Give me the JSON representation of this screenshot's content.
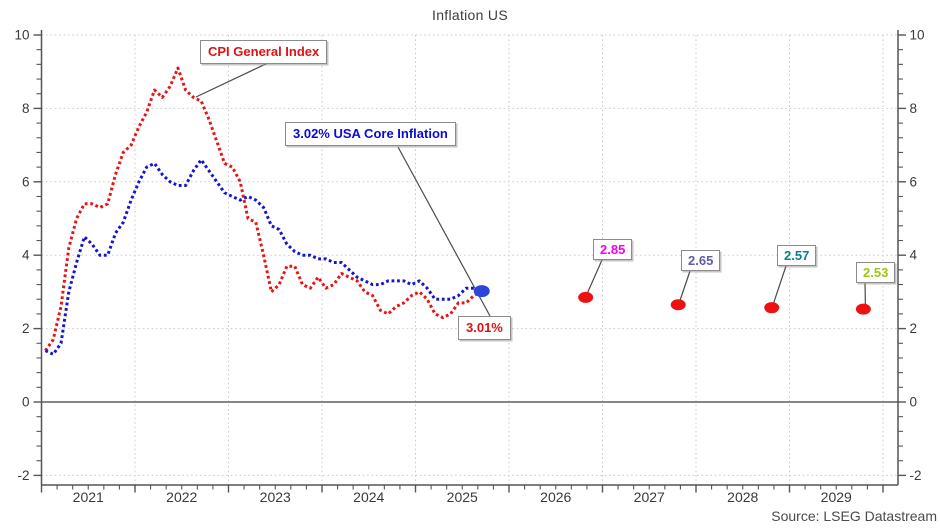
{
  "title": "Inflation US",
  "source": "Source: LSEG Datastream",
  "annotations": [
    {
      "id": "cpi",
      "text": "CPI General Index",
      "color": "#e01212"
    },
    {
      "id": "core",
      "text": "3.02% USA Core Inflation",
      "color": "#0a0ad6"
    },
    {
      "id": "last",
      "text": "3.01%",
      "color": "#e01212"
    }
  ],
  "colors": {
    "cpi_line": "#e81414",
    "core_line": "#1515cc",
    "end_dot_blue": "#2d46d8",
    "forecast_dot_red": "#ee1111",
    "grid": "#cbcbcb",
    "axis": "#555555",
    "zero_line": "#3f3f3f",
    "tick_label": "#3a3a3a"
  },
  "chart_data": {
    "type": "line",
    "title": "Inflation US",
    "xlabel": "",
    "ylabel": "",
    "x_start_year": 2021,
    "frequency": "monthly",
    "x_year_labels": [
      "2021",
      "2022",
      "2023",
      "2024",
      "2025",
      "2026",
      "2027",
      "2028",
      "2029"
    ],
    "ylim": [
      -2.25,
      10.15
    ],
    "yticks": [
      10,
      8,
      6,
      4,
      2,
      0,
      -2
    ],
    "ytick_labels": [
      "10",
      "8",
      "6",
      "4",
      "2",
      "0",
      "-2"
    ],
    "y_minor_step": 0.4,
    "x_minor_per_year": 6,
    "grid": "dotted",
    "zero_line": true,
    "series": [
      {
        "name": "CPI General Index",
        "style": "dotted",
        "color": "#e81414",
        "values": [
          1.4,
          1.7,
          2.6,
          4.2,
          5.0,
          5.4,
          5.4,
          5.3,
          5.4,
          6.2,
          6.8,
          7.0,
          7.5,
          7.9,
          8.5,
          8.3,
          8.6,
          9.1,
          8.5,
          8.3,
          8.2,
          7.7,
          7.1,
          6.5,
          6.4,
          6.0,
          5.0,
          4.9,
          4.0,
          3.0,
          3.2,
          3.7,
          3.7,
          3.2,
          3.1,
          3.4,
          3.1,
          3.2,
          3.5,
          3.4,
          3.3,
          3.0,
          2.9,
          2.5,
          2.4,
          2.6,
          2.7,
          2.9,
          3.0,
          2.8,
          2.4,
          2.3,
          2.4,
          2.7,
          2.7,
          2.9,
          3.01
        ],
        "last_value_label": "3.01%"
      },
      {
        "name": "USA Core Inflation",
        "style": "dotted",
        "color": "#1515cc",
        "values": [
          1.4,
          1.3,
          1.6,
          3.0,
          3.8,
          4.5,
          4.3,
          4.0,
          4.0,
          4.6,
          4.9,
          5.5,
          6.0,
          6.4,
          6.5,
          6.2,
          6.0,
          5.9,
          5.9,
          6.3,
          6.6,
          6.3,
          6.0,
          5.7,
          5.6,
          5.5,
          5.6,
          5.5,
          5.3,
          4.8,
          4.7,
          4.3,
          4.1,
          4.0,
          4.0,
          3.9,
          3.9,
          3.8,
          3.8,
          3.6,
          3.4,
          3.3,
          3.2,
          3.2,
          3.3,
          3.3,
          3.3,
          3.2,
          3.3,
          3.1,
          2.8,
          2.8,
          2.8,
          2.9,
          3.1,
          3.1,
          3.02
        ],
        "last_value_label": "3.02%"
      }
    ],
    "forecast_points": [
      {
        "x_year": 2026.82,
        "value": 2.85,
        "label": "2.85",
        "label_color": "#f000f0",
        "dot_color": "#ee1111"
      },
      {
        "x_year": 2027.81,
        "value": 2.65,
        "label": "2.65",
        "label_color": "#5d5dab",
        "dot_color": "#ee1111"
      },
      {
        "x_year": 2028.81,
        "value": 2.57,
        "label": "2.57",
        "label_color": "#0b7e87",
        "dot_color": "#ee1111"
      },
      {
        "x_year": 2029.79,
        "value": 2.53,
        "label": "2.53",
        "label_color": "#9cc716",
        "dot_color": "#ee1111"
      }
    ],
    "legend_position": "none",
    "source": "Source: LSEG Datastream"
  }
}
